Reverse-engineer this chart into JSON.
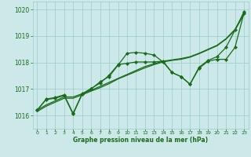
{
  "bg_color": "#cce8e8",
  "grid_color": "#99cccc",
  "line_color": "#1a6b1a",
  "marker_color": "#1a6b1a",
  "xlabel": "Graphe pression niveau de la mer (hPa)",
  "xlabel_color": "#1a6b1a",
  "ylim": [
    1015.5,
    1020.3
  ],
  "xlim": [
    -0.5,
    23.5
  ],
  "yticks": [
    1016,
    1017,
    1018,
    1019,
    1020
  ],
  "xticks": [
    0,
    1,
    2,
    3,
    4,
    5,
    6,
    7,
    8,
    9,
    10,
    11,
    12,
    13,
    14,
    15,
    16,
    17,
    18,
    19,
    20,
    21,
    22,
    23
  ],
  "series": [
    {
      "x": [
        0,
        1,
        2,
        3,
        4,
        5,
        6,
        7,
        8,
        9,
        10,
        11,
        12,
        13,
        14,
        15,
        16,
        17,
        18,
        19,
        20,
        21,
        22,
        23
      ],
      "y": [
        1016.2,
        1016.4,
        1016.55,
        1016.7,
        1016.7,
        1016.82,
        1016.95,
        1017.1,
        1017.25,
        1017.4,
        1017.55,
        1017.7,
        1017.85,
        1017.95,
        1018.05,
        1018.1,
        1018.15,
        1018.22,
        1018.35,
        1018.5,
        1018.65,
        1018.9,
        1019.25,
        1019.85
      ],
      "has_markers": false,
      "lw": 0.9
    },
    {
      "x": [
        0,
        1,
        2,
        3,
        4,
        5,
        6,
        7,
        8,
        9,
        10,
        11,
        12,
        13,
        14,
        15,
        16,
        17,
        18,
        19,
        20,
        21,
        22,
        23
      ],
      "y": [
        1016.15,
        1016.35,
        1016.5,
        1016.65,
        1016.65,
        1016.78,
        1016.92,
        1017.05,
        1017.2,
        1017.38,
        1017.52,
        1017.66,
        1017.8,
        1017.92,
        1018.02,
        1018.08,
        1018.12,
        1018.2,
        1018.33,
        1018.48,
        1018.63,
        1018.88,
        1019.22,
        1019.82
      ],
      "has_markers": false,
      "lw": 0.9
    },
    {
      "x": [
        0,
        1,
        2,
        3,
        4,
        5,
        6,
        7,
        8,
        9,
        10,
        11,
        12,
        13,
        14,
        15,
        16,
        17,
        18,
        19,
        20,
        21,
        22,
        23
      ],
      "y": [
        1016.2,
        1016.6,
        1016.65,
        1016.75,
        1016.05,
        1016.8,
        1017.0,
        1017.27,
        1017.47,
        1017.9,
        1018.35,
        1018.38,
        1018.35,
        1018.28,
        1018.02,
        1017.62,
        1017.47,
        1017.18,
        1017.78,
        1018.05,
        1018.12,
        1018.12,
        1018.57,
        1019.87
      ],
      "has_markers": true,
      "lw": 0.9
    },
    {
      "x": [
        0,
        1,
        2,
        3,
        4,
        5,
        6,
        7,
        8,
        9,
        10,
        11,
        12,
        13,
        14,
        15,
        16,
        17,
        18,
        19,
        20,
        21,
        22,
        23
      ],
      "y": [
        1016.2,
        1016.62,
        1016.68,
        1016.78,
        1016.08,
        1016.82,
        1017.02,
        1017.22,
        1017.52,
        1017.92,
        1017.97,
        1018.02,
        1018.02,
        1018.02,
        1018.05,
        1017.62,
        1017.47,
        1017.18,
        1017.82,
        1018.08,
        1018.22,
        1018.57,
        1019.22,
        1019.92
      ],
      "has_markers": true,
      "lw": 0.9
    }
  ]
}
